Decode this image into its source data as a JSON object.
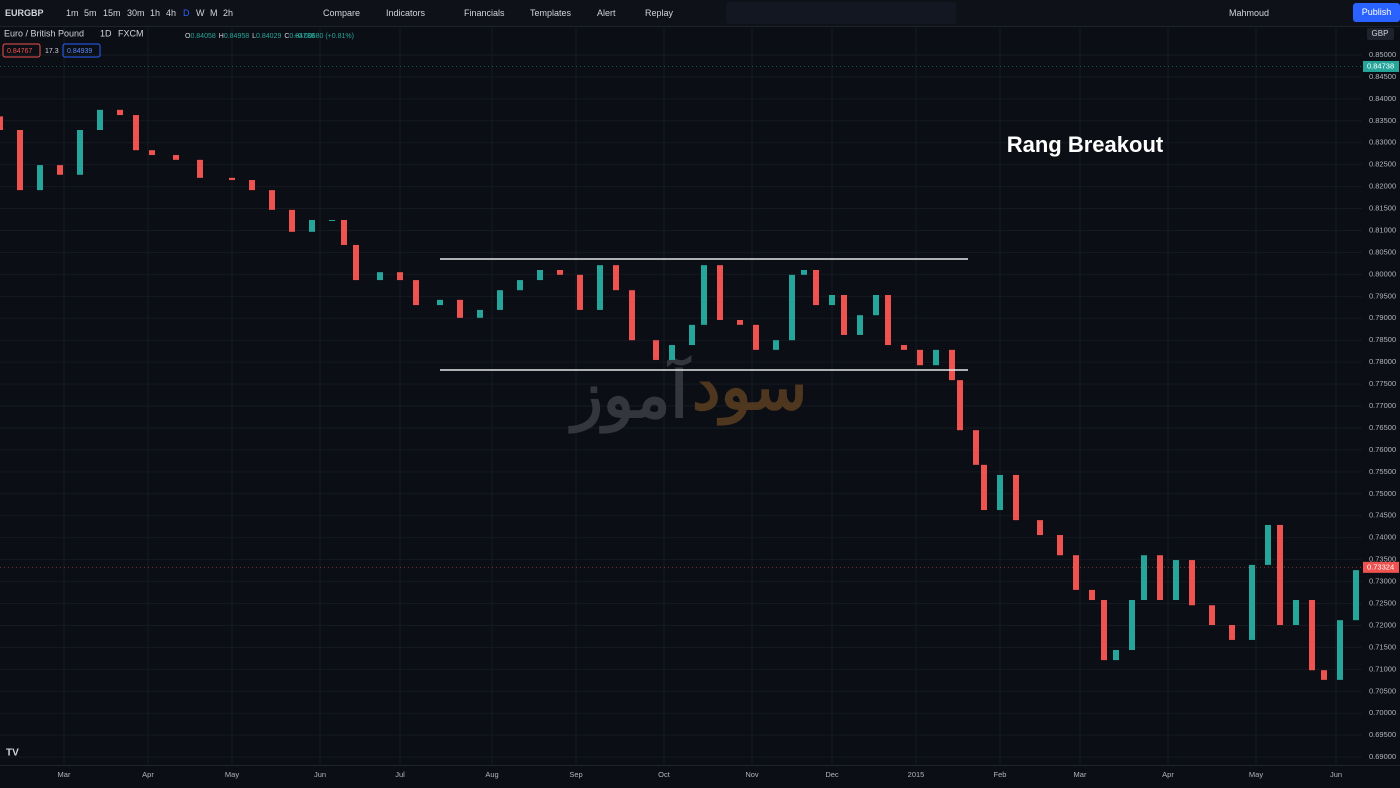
{
  "toolbar": {
    "symbol": "EURGBP",
    "intervals": [
      "1m",
      "5m",
      "15m",
      "30m",
      "1h",
      "4h",
      "D",
      "W",
      "M",
      "2h"
    ],
    "buttons": [
      "Compare",
      "Indicators",
      "Financials",
      "Templates",
      "Alert",
      "Replay"
    ],
    "user": "Mahmoud",
    "publish": "Publish"
  },
  "legend": {
    "name": "Euro / British Pound",
    "interval": "1D",
    "source": "FXCM",
    "ohlc": [
      {
        "key": "O",
        "value": "0.84058"
      },
      {
        "key": "H",
        "value": "0.84958"
      },
      {
        "key": "L",
        "value": "0.84029"
      },
      {
        "key": "C",
        "value": "0.84738"
      }
    ],
    "change": "+0.00680 (+0.81%)",
    "boxes": [
      "0.84767",
      "17.3",
      "0.84939"
    ]
  },
  "chart_data": {
    "type": "candlestick",
    "x": [
      0,
      5,
      10,
      15,
      20,
      25,
      30,
      34,
      38,
      44,
      50,
      58,
      63,
      68,
      73,
      78,
      83,
      86,
      89,
      95,
      100,
      104,
      110,
      115,
      120,
      125,
      130,
      135,
      140,
      145,
      150,
      154,
      158,
      164,
      168,
      173,
      176,
      180,
      185,
      189,
      194,
      198,
      201,
      204,
      208,
      211,
      215,
      219,
      222,
      226,
      230,
      234,
      238,
      240,
      244,
      246,
      250,
      254,
      260,
      265,
      269,
      273,
      276,
      279,
      283,
      286,
      290,
      294,
      298,
      303,
      308,
      313,
      317,
      320,
      324,
      328,
      331,
      335,
      339
    ],
    "open": [
      0.836,
      0.8329,
      0.8192,
      0.8249,
      0.8227,
      0.8329,
      0.8375,
      0.8363,
      0.8283,
      0.8272,
      0.8261,
      0.822,
      0.8215,
      0.8192,
      0.8147,
      0.8097,
      0.8124,
      0.8124,
      0.8067,
      0.7987,
      0.8005,
      0.7987,
      0.793,
      0.7942,
      0.7901,
      0.7919,
      0.7964,
      0.7987,
      0.801,
      0.7999,
      0.7919,
      0.8021,
      0.7964,
      0.785,
      0.7805,
      0.7839,
      0.7885,
      0.8021,
      0.7896,
      0.7885,
      0.7828,
      0.785,
      0.7999,
      0.801,
      0.793,
      0.7953,
      0.7862,
      0.7907,
      0.7953,
      0.7839,
      0.7828,
      0.7793,
      0.7828,
      0.7759,
      0.7645,
      0.7566,
      0.7463,
      0.7543,
      0.744,
      0.7406,
      0.736,
      0.7281,
      0.7258,
      0.7121,
      0.7144,
      0.7258,
      0.736,
      0.7258,
      0.7349,
      0.7246,
      0.7201,
      0.7167,
      0.7338,
      0.7429,
      0.7201,
      0.7258,
      0.7098,
      0.7076,
      0.7212
    ],
    "close": [
      0.8329,
      0.8192,
      0.8249,
      0.8227,
      0.8329,
      0.8375,
      0.8363,
      0.8283,
      0.8272,
      0.8261,
      0.822,
      0.8215,
      0.8192,
      0.8147,
      0.8097,
      0.8124,
      0.8124,
      0.8067,
      0.7987,
      0.8005,
      0.7987,
      0.793,
      0.7942,
      0.7901,
      0.7919,
      0.7964,
      0.7987,
      0.801,
      0.7999,
      0.7919,
      0.8021,
      0.7964,
      0.785,
      0.7805,
      0.7839,
      0.7885,
      0.8021,
      0.7896,
      0.7885,
      0.7828,
      0.785,
      0.7999,
      0.801,
      0.793,
      0.7953,
      0.7862,
      0.7907,
      0.7953,
      0.7839,
      0.7828,
      0.7793,
      0.7828,
      0.7759,
      0.7645,
      0.7566,
      0.7463,
      0.7543,
      0.744,
      0.7406,
      0.736,
      0.7281,
      0.7258,
      0.7121,
      0.7144,
      0.7258,
      0.736,
      0.7258,
      0.7349,
      0.7246,
      0.7201,
      0.7167,
      0.7338,
      0.7429,
      0.7201,
      0.7258,
      0.7098,
      0.7076,
      0.7212,
      0.7326
    ],
    "up_color": "#26a69a",
    "down_color": "#ef5350",
    "xlim": [
      0,
      340.5
    ],
    "xticks": [
      {
        "value": 16,
        "label": "Mar"
      },
      {
        "value": 37,
        "label": "Apr"
      },
      {
        "value": 58,
        "label": "May"
      },
      {
        "value": 80,
        "label": "Jun"
      },
      {
        "value": 100,
        "label": "Jul"
      },
      {
        "value": 123,
        "label": "Aug"
      },
      {
        "value": 144,
        "label": "Sep"
      },
      {
        "value": 166,
        "label": "Oct"
      },
      {
        "value": 188,
        "label": "Nov"
      },
      {
        "value": 208,
        "label": "Dec"
      },
      {
        "value": 229,
        "label": "2015"
      },
      {
        "value": 250,
        "label": "Feb"
      },
      {
        "value": 270,
        "label": "Mar"
      },
      {
        "value": 292,
        "label": "Apr"
      },
      {
        "value": 314,
        "label": "May"
      },
      {
        "value": 334,
        "label": "Jun"
      }
    ],
    "ylim": [
      0.6882,
      0.8566
    ],
    "yticks": [
      {
        "value": 0.85,
        "label": "0.85000"
      },
      {
        "value": 0.845,
        "label": "0.84500"
      },
      {
        "value": 0.84,
        "label": "0.84000"
      },
      {
        "value": 0.835,
        "label": "0.83500"
      },
      {
        "value": 0.83,
        "label": "0.83000"
      },
      {
        "value": 0.825,
        "label": "0.82500"
      },
      {
        "value": 0.82,
        "label": "0.82000"
      },
      {
        "value": 0.815,
        "label": "0.81500"
      },
      {
        "value": 0.81,
        "label": "0.81000"
      },
      {
        "value": 0.805,
        "label": "0.80500"
      },
      {
        "value": 0.8,
        "label": "0.80000"
      },
      {
        "value": 0.795,
        "label": "0.79500"
      },
      {
        "value": 0.79,
        "label": "0.79000"
      },
      {
        "value": 0.785,
        "label": "0.78500"
      },
      {
        "value": 0.78,
        "label": "0.78000"
      },
      {
        "value": 0.775,
        "label": "0.77500"
      },
      {
        "value": 0.77,
        "label": "0.77000"
      },
      {
        "value": 0.765,
        "label": "0.76500"
      },
      {
        "value": 0.76,
        "label": "0.76000"
      },
      {
        "value": 0.755,
        "label": "0.75500"
      },
      {
        "value": 0.75,
        "label": "0.75000"
      },
      {
        "value": 0.745,
        "label": "0.74500"
      },
      {
        "value": 0.74,
        "label": "0.74000"
      },
      {
        "value": 0.735,
        "label": "0.73500"
      },
      {
        "value": 0.73,
        "label": "0.73000"
      },
      {
        "value": 0.725,
        "label": "0.72500"
      },
      {
        "value": 0.72,
        "label": "0.72000"
      },
      {
        "value": 0.715,
        "label": "0.71500"
      },
      {
        "value": 0.71,
        "label": "0.71000"
      },
      {
        "value": 0.705,
        "label": "0.70500"
      },
      {
        "value": 0.7,
        "label": "0.70000"
      },
      {
        "value": 0.695,
        "label": "0.69500"
      },
      {
        "value": 0.69,
        "label": "0.69000"
      }
    ],
    "grid": true,
    "currency": "GBP",
    "price_labels": [
      0.84738,
      0.73324
    ],
    "price_label_colors": [
      "#26a69a",
      "#ef5350"
    ],
    "range_lines": [
      0.8035,
      0.7782
    ],
    "range_x": [
      110,
      242
    ],
    "annotation": "Rang Breakout",
    "watermark": [
      "سود",
      "آموز"
    ]
  }
}
